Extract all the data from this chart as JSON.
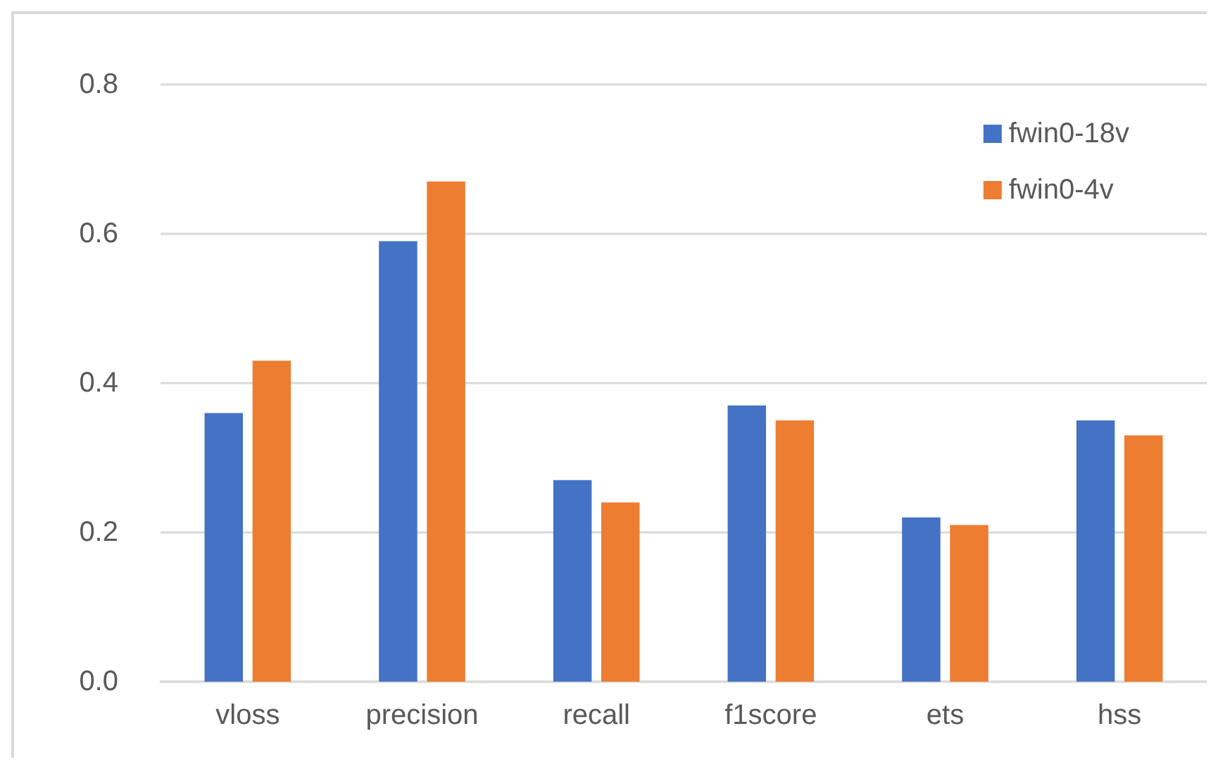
{
  "chart_data": {
    "type": "bar",
    "categories": [
      "vloss",
      "precision",
      "recall",
      "f1score",
      "ets",
      "hss"
    ],
    "series": [
      {
        "name": "fwin0-18v",
        "color": "#4472c4",
        "values": [
          0.36,
          0.59,
          0.27,
          0.37,
          0.22,
          0.35
        ]
      },
      {
        "name": "fwin0-4v",
        "color": "#ed7d31",
        "values": [
          0.43,
          0.67,
          0.24,
          0.35,
          0.21,
          0.33
        ]
      }
    ],
    "ylim": [
      0,
      0.8
    ],
    "yticks": [
      {
        "value": 0,
        "label": "0.0"
      },
      0.2,
      0.4,
      0.6,
      0.8
    ],
    "grid": "y",
    "legend": "top right"
  }
}
